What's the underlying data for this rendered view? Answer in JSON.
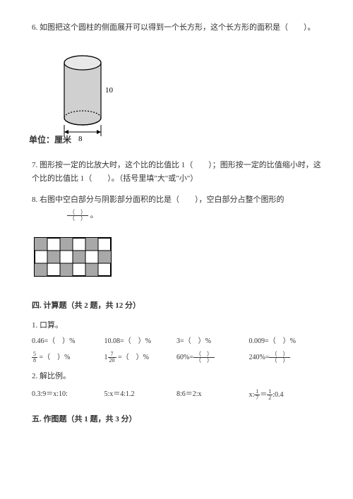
{
  "q6": {
    "text": "6. 如图把这个圆柱的侧面展开可以得到一个长方形，这个长方形的面积是（　　）。",
    "unit_label": "单位：厘米",
    "cylinder": {
      "height": 10,
      "diameter": 8
    }
  },
  "q7": {
    "text": "7. 图形按一定的比放大时，这个比的比值比 1（　　）；图形按一定的比值缩小时，这个比的比值比 1（　　）。（括号里填\"大\"或\"小\"）"
  },
  "q8": {
    "text_a": "8. 右图中空白部分与阴影部分面积的比是（　　），空白部分占整个图形的",
    "text_b": "。",
    "grid": {
      "rows": 3,
      "cols": 6,
      "cell": 18,
      "shaded": [
        [
          0,
          0
        ],
        [
          0,
          2
        ],
        [
          0,
          4
        ],
        [
          1,
          1
        ],
        [
          1,
          3
        ],
        [
          1,
          5
        ],
        [
          2,
          0
        ],
        [
          2,
          2
        ],
        [
          2,
          4
        ]
      ],
      "shade_color": "#a8a8a8",
      "border_color": "#000000"
    }
  },
  "section4": {
    "heading": "四. 计算题（共 2 题，共 12 分）"
  },
  "calc1": {
    "label": "1. 口算。",
    "row1": [
      "0.46=（　）%",
      "10.08=（　）%",
      "3=（　）%",
      "0.009=（　）%"
    ],
    "row2_frac": [
      "5",
      "8",
      "7",
      "20"
    ],
    "row2": [
      " =（　）%",
      " =（　）%",
      "60%=",
      "240%="
    ]
  },
  "calc2": {
    "label": "2. 解比例。",
    "items": [
      "0.3:9＝x:10:",
      "5:x＝4:1.2",
      "8:6＝2:x",
      "x: = :0.4"
    ],
    "frac4": [
      "1",
      "7",
      "1",
      "2"
    ]
  },
  "section5": {
    "heading": "五. 作图题（共 1 题，共 3 分）"
  },
  "colors": {
    "text": "#333333",
    "bg": "#ffffff",
    "stroke": "#000000",
    "shade": "#a8a8a8",
    "shade2": "#d0d0d0"
  }
}
